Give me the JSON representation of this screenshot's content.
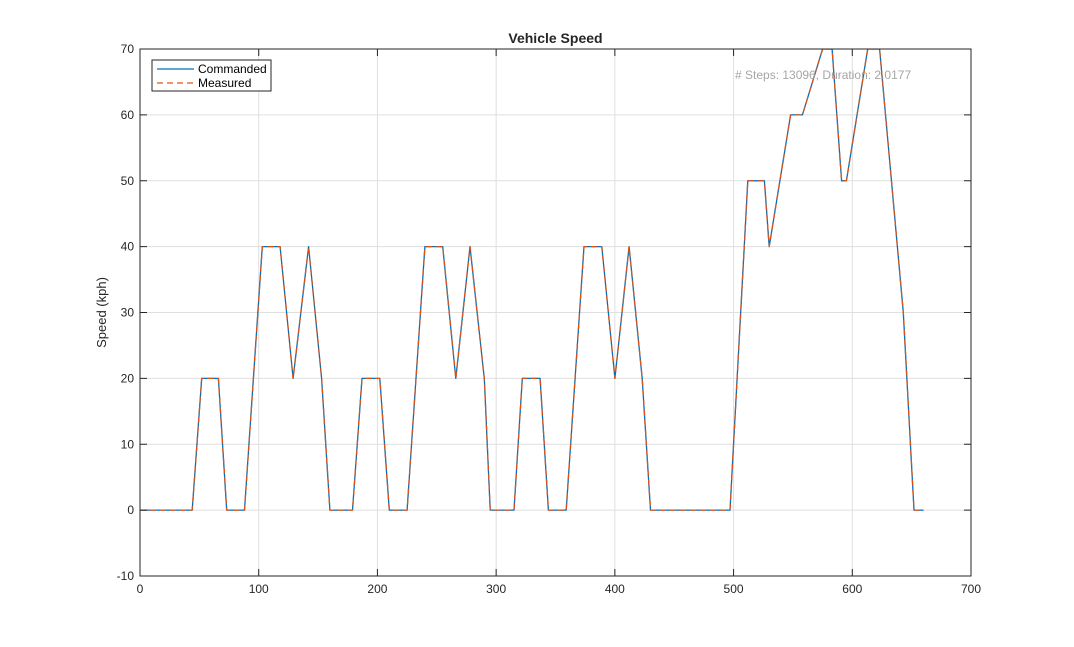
{
  "chart_data": {
    "type": "line",
    "title": "Vehicle Speed",
    "xlabel": "",
    "ylabel": "Speed (kph)",
    "xlim": [
      0,
      700
    ],
    "ylim": [
      -10,
      70
    ],
    "xticks": [
      0,
      100,
      200,
      300,
      400,
      500,
      600,
      700
    ],
    "yticks": [
      -10,
      0,
      10,
      20,
      30,
      40,
      50,
      60,
      70
    ],
    "grid": true,
    "legend": {
      "position": "top-left",
      "entries": [
        "Commanded",
        "Measured"
      ]
    },
    "annotation": "# Steps: 13096, Duration: 2.0177",
    "colors": {
      "Commanded": "#0072BD",
      "Measured": "#D95319"
    },
    "series": [
      {
        "name": "Commanded",
        "style": "solid",
        "x": [
          0,
          44,
          52,
          66,
          73,
          88,
          103,
          118,
          129,
          142,
          153,
          160,
          179,
          187,
          202,
          210,
          225,
          240,
          255,
          266,
          278,
          290,
          295,
          315,
          322,
          337,
          344,
          359,
          374,
          389,
          400,
          412,
          423,
          430,
          497,
          512,
          526,
          530,
          548,
          558,
          575,
          583,
          591,
          595,
          613,
          623,
          643,
          652,
          660
        ],
        "y": [
          0,
          0,
          20,
          20,
          0,
          0,
          40,
          40,
          20,
          40,
          20,
          0,
          0,
          20,
          20,
          0,
          0,
          40,
          40,
          20,
          40,
          20,
          0,
          0,
          20,
          20,
          0,
          0,
          40,
          40,
          20,
          40,
          20,
          0,
          0,
          50,
          50,
          40,
          60,
          60,
          70,
          70,
          50,
          50,
          70,
          70,
          30,
          0,
          0
        ]
      },
      {
        "name": "Measured",
        "style": "dashed",
        "x": [
          0,
          44,
          52,
          66,
          73,
          88,
          103,
          118,
          129,
          142,
          153,
          160,
          179,
          187,
          202,
          210,
          225,
          240,
          255,
          266,
          278,
          290,
          295,
          315,
          322,
          337,
          344,
          359,
          374,
          389,
          400,
          412,
          423,
          430,
          497,
          512,
          526,
          530,
          548,
          558,
          575,
          583,
          591,
          595,
          613,
          623,
          643,
          652,
          660
        ],
        "y": [
          0,
          0,
          20,
          20,
          0,
          0,
          40,
          40,
          20,
          40,
          20,
          0,
          0,
          20,
          20,
          0,
          0,
          40,
          40,
          20,
          40,
          20,
          0,
          0,
          20,
          20,
          0,
          0,
          40,
          40,
          20,
          40,
          20,
          0,
          0,
          50,
          50,
          40,
          60,
          60,
          70,
          70,
          50,
          50,
          70,
          70,
          30,
          0,
          0
        ]
      }
    ]
  }
}
